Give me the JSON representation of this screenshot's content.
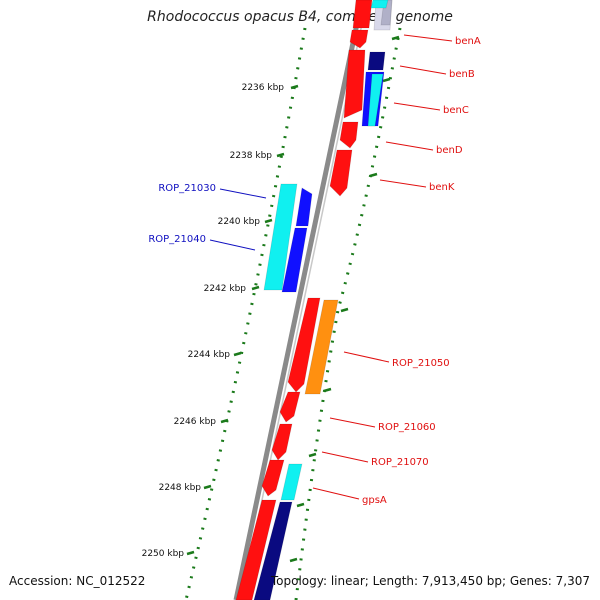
{
  "title": "Rhodococcus opacus B4, complete genome",
  "accession": "Accession: NC_012522",
  "summary": "Topology: linear; Length: 7,913,450 bp; Genes: 7,307",
  "colors": {
    "backbone": "#8a8a8a",
    "ruler": "#1b7a1b",
    "gene_label_red": "#e01010",
    "gene_label_blue": "#1010c0",
    "red": "#ff1010",
    "blue": "#1010ff",
    "navy": "#0a0a80",
    "cyan": "#10f0f0",
    "orange": "#ff9010",
    "pale": "#d8d8ea"
  },
  "ruler_labels": [
    "2236 kbp",
    "2238 kbp",
    "2240 kbp",
    "2242 kbp",
    "2244 kbp",
    "2246 kbp",
    "2248 kbp",
    "2250 kbp"
  ],
  "gene_labels": [
    {
      "text": "benA",
      "color": "red"
    },
    {
      "text": "benB",
      "color": "red"
    },
    {
      "text": "benC",
      "color": "red"
    },
    {
      "text": "benD",
      "color": "red"
    },
    {
      "text": "benK",
      "color": "red"
    },
    {
      "text": "ROP_21030",
      "color": "blue"
    },
    {
      "text": "ROP_21040",
      "color": "blue"
    },
    {
      "text": "ROP_21050",
      "color": "red"
    },
    {
      "text": "ROP_21060",
      "color": "red"
    },
    {
      "text": "ROP_21070",
      "color": "red"
    },
    {
      "text": "gpsA",
      "color": "red"
    }
  ]
}
